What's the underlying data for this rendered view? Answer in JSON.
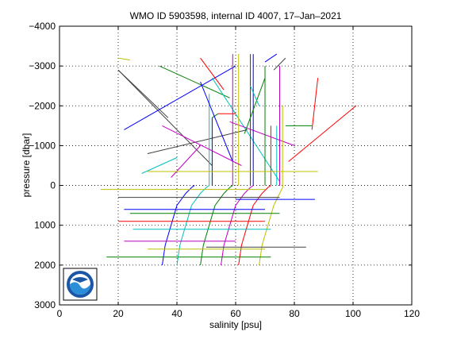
{
  "chart_data": {
    "type": "line",
    "title": "WMO ID 5903598, internal ID 4007, 17–Jan–2021",
    "xlabel": "salinity [psu]",
    "ylabel": "pressure [dbar]",
    "xlim": [
      0,
      120
    ],
    "ylim": [
      -4000,
      3000
    ],
    "y_reversed": true,
    "grid": true,
    "x_ticks": [
      0,
      20,
      40,
      60,
      80,
      100,
      120
    ],
    "x_tick_labels": [
      "0",
      "20",
      "40",
      "60",
      "80",
      "100",
      "120"
    ],
    "y_ticks": [
      -4000,
      -3000,
      -2000,
      -1000,
      0,
      1000,
      2000,
      3000
    ],
    "y_tick_labels": [
      "−4000",
      "−3000",
      "−2000",
      "−1000",
      "0",
      "1000",
      "2000",
      "3000"
    ],
    "colors": [
      "#0000ff",
      "#008000",
      "#ff0000",
      "#00bfbf",
      "#bf00bf",
      "#bfbf00",
      "#404040"
    ],
    "series": [
      {
        "x": [
          35,
          36,
          38,
          40,
          43,
          45,
          46
        ],
        "y": [
          2000,
          1500,
          1000,
          500,
          200,
          50,
          0
        ]
      },
      {
        "x": [
          48,
          49,
          51,
          53,
          56,
          58,
          59
        ],
        "y": [
          2000,
          1500,
          1000,
          500,
          200,
          50,
          0
        ]
      },
      {
        "x": [
          61,
          62,
          64,
          66,
          69,
          71,
          72
        ],
        "y": [
          2000,
          1500,
          1000,
          500,
          200,
          50,
          0
        ]
      },
      {
        "x": [
          40,
          41,
          43,
          45,
          48,
          50,
          51
        ],
        "y": [
          2000,
          1500,
          1000,
          500,
          200,
          50,
          0
        ]
      },
      {
        "x": [
          55,
          56,
          58,
          60,
          63,
          65,
          66
        ],
        "y": [
          2000,
          1500,
          1000,
          500,
          200,
          50,
          0
        ]
      },
      {
        "x": [
          68,
          69,
          71,
          73,
          75,
          76,
          76
        ],
        "y": [
          2000,
          1500,
          1000,
          500,
          200,
          50,
          0
        ]
      },
      {
        "x": [
          20,
          52
        ],
        "y": [
          -2900,
          -500
        ]
      },
      {
        "x": [
          22,
          60
        ],
        "y": [
          -1400,
          -3000
        ]
      },
      {
        "x": [
          34,
          58
        ],
        "y": [
          -3000,
          -2200
        ]
      },
      {
        "x": [
          48,
          56
        ],
        "y": [
          -3200,
          -2400
        ]
      },
      {
        "x": [
          52,
          75
        ],
        "y": [
          -2700,
          -100
        ]
      },
      {
        "x": [
          58,
          80
        ],
        "y": [
          -1600,
          -1000
        ]
      },
      {
        "x": [
          20,
          24
        ],
        "y": [
          -3200,
          -3150
        ]
      },
      {
        "x": [
          30,
          64
        ],
        "y": [
          -800,
          -1400
        ]
      },
      {
        "x": [
          52,
          52
        ],
        "y": [
          -1700,
          0
        ]
      },
      {
        "x": [
          52,
          54
        ],
        "y": [
          -1700,
          -1800
        ]
      },
      {
        "x": [
          54,
          60
        ],
        "y": [
          -1800,
          -1800
        ]
      },
      {
        "x": [
          51,
          51
        ],
        "y": [
          -2300,
          0
        ]
      },
      {
        "x": [
          59,
          59
        ],
        "y": [
          -3300,
          0
        ]
      },
      {
        "x": [
          61,
          61
        ],
        "y": [
          -3300,
          0
        ]
      },
      {
        "x": [
          65,
          65
        ],
        "y": [
          -3300,
          0
        ]
      },
      {
        "x": [
          66,
          66
        ],
        "y": [
          -3300,
          0
        ]
      },
      {
        "x": [
          70,
          70
        ],
        "y": [
          -3000,
          0
        ]
      },
      {
        "x": [
          72,
          72
        ],
        "y": [
          -1500,
          0
        ]
      },
      {
        "x": [
          74,
          74
        ],
        "y": [
          -1500,
          0
        ]
      },
      {
        "x": [
          75,
          75
        ],
        "y": [
          -3000,
          0
        ]
      },
      {
        "x": [
          76,
          76
        ],
        "y": [
          -2000,
          0
        ]
      },
      {
        "x": [
          73,
          77
        ],
        "y": [
          -2900,
          -3200
        ]
      },
      {
        "x": [
          70,
          74
        ],
        "y": [
          -3100,
          -3300
        ]
      },
      {
        "x": [
          77,
          86
        ],
        "y": [
          -1500,
          -1500
        ]
      },
      {
        "x": [
          86,
          88
        ],
        "y": [
          -1400,
          -2700
        ]
      },
      {
        "x": [
          28,
          40
        ],
        "y": [
          -300,
          -700
        ]
      },
      {
        "x": [
          38,
          48
        ],
        "y": [
          -200,
          -1000
        ]
      },
      {
        "x": [
          30,
          88
        ],
        "y": [
          -350,
          -350
        ]
      },
      {
        "x": [
          20,
          37
        ],
        "y": [
          -2900,
          -1700
        ]
      },
      {
        "x": [
          48,
          59
        ],
        "y": [
          -2600,
          -600
        ]
      },
      {
        "x": [
          63,
          70
        ],
        "y": [
          -1300,
          -2700
        ]
      },
      {
        "x": [
          78,
          101
        ],
        "y": [
          -600,
          -2000
        ]
      },
      {
        "x": [
          65,
          68
        ],
        "y": [
          -2500,
          -2000
        ]
      },
      {
        "x": [
          35,
          62
        ],
        "y": [
          -1500,
          -500
        ]
      },
      {
        "x": [
          14,
          70
        ],
        "y": [
          100,
          100
        ]
      },
      {
        "x": [
          20,
          75
        ],
        "y": [
          300,
          300
        ]
      },
      {
        "x": [
          22,
          70
        ],
        "y": [
          600,
          600
        ]
      },
      {
        "x": [
          24,
          75
        ],
        "y": [
          700,
          700
        ]
      },
      {
        "x": [
          20,
          70
        ],
        "y": [
          900,
          900
        ]
      },
      {
        "x": [
          25,
          72
        ],
        "y": [
          1100,
          1100
        ]
      },
      {
        "x": [
          22,
          60
        ],
        "y": [
          1400,
          1400
        ]
      },
      {
        "x": [
          30,
          70
        ],
        "y": [
          1600,
          1600
        ]
      },
      {
        "x": [
          50,
          84
        ],
        "y": [
          1550,
          1550
        ]
      },
      {
        "x": [
          60,
          87
        ],
        "y": [
          350,
          350
        ]
      },
      {
        "x": [
          16,
          72
        ],
        "y": [
          1800,
          1800
        ]
      }
    ]
  }
}
